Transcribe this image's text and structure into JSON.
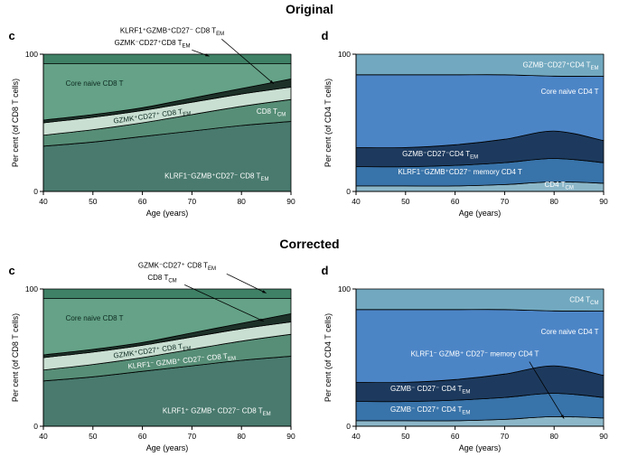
{
  "sections": [
    {
      "title": "Original"
    },
    {
      "title": "Corrected"
    }
  ],
  "chart_data": [
    {
      "panel_letter": "c",
      "section": "Original",
      "type": "area",
      "stacked": true,
      "x": [
        40,
        50,
        60,
        70,
        80,
        90
      ],
      "xlim": [
        40,
        90
      ],
      "ylim": [
        0,
        100
      ],
      "xticks": [
        40,
        50,
        60,
        70,
        80,
        90
      ],
      "yticks": [
        0,
        100
      ],
      "xlabel": "Age (years)",
      "ylabel": "Per cent (of CD8 T cells)",
      "series": [
        {
          "name": "KLRF1⁻GZMB⁺CD27⁻ CD8 T~EM~",
          "color": "#497a6d",
          "values": [
            33,
            36,
            40,
            44,
            48,
            51
          ]
        },
        {
          "name": "CD8 T~CM~",
          "color": "#578e77",
          "values": [
            8,
            9,
            10,
            12,
            14,
            16
          ]
        },
        {
          "name": "GZMK⁺CD27⁺ CD8 T~EM~",
          "color": "#c9dfd2",
          "values": [
            9,
            9,
            9,
            9,
            9,
            9
          ]
        },
        {
          "name": "KLRF1⁺GZMB⁺CD27⁻ CD8 T~EM~",
          "color": "#1d3129",
          "values": [
            2,
            2,
            2,
            3,
            4,
            6
          ]
        },
        {
          "name": "Core naive CD8 T",
          "color": "#65a287",
          "values": [
            41,
            37,
            32,
            25,
            18,
            11
          ]
        },
        {
          "name": "GZMK⁻CD27⁺CD8 T~EM~",
          "color": "#3f8166",
          "values": [
            7,
            7,
            7,
            7,
            7,
            7
          ]
        }
      ],
      "labels": [
        {
          "text": "Core naive CD8 T",
          "x": 44.5,
          "y": 77,
          "anchor": "start",
          "color": "#0e2b22"
        },
        {
          "text": "GZMK⁺CD27⁺ CD8 T~EM~",
          "x": 62,
          "y": 53.5,
          "anchor": "middle",
          "color": "#0e2b22",
          "rotate": -8
        },
        {
          "text": "CD8 T~CM~",
          "x": 86,
          "y": 56.5,
          "anchor": "middle",
          "color": "#ffffff"
        },
        {
          "text": "KLRF1⁻GZMB⁺CD27⁻ CD8 T~EM~",
          "x": 75,
          "y": 9.5,
          "anchor": "middle",
          "color": "#ffffff"
        }
      ],
      "annotations": [
        {
          "text": "KLRF1⁺GZMB⁺CD27⁻ CD8 T~EM~",
          "x": 66,
          "y": 115.5,
          "anchor": "middle",
          "color": "#000000",
          "arrow": [
            76,
            111,
            86.5,
            78.5
          ]
        },
        {
          "text": "GZMK⁻CD27⁺CD8 T~EM~",
          "x": 62,
          "y": 106.5,
          "anchor": "middle",
          "color": "#000000",
          "arrow": [
            70,
            103,
            73.5,
            98.5
          ]
        }
      ]
    },
    {
      "panel_letter": "d",
      "section": "Original",
      "type": "area",
      "stacked": true,
      "x": [
        40,
        50,
        60,
        70,
        80,
        90
      ],
      "xlim": [
        40,
        90
      ],
      "ylim": [
        0,
        100
      ],
      "xticks": [
        40,
        50,
        60,
        70,
        80,
        90
      ],
      "yticks": [
        0,
        100
      ],
      "xlabel": "Age (years)",
      "ylabel": "Per cent (of CD4 T cells)",
      "series": [
        {
          "name": "CD4 T~CM~",
          "color": "#8cb7c9",
          "values": [
            4,
            4,
            4,
            5,
            7,
            6
          ]
        },
        {
          "name": "KLRF1⁻GZMB⁺CD27⁻ memory CD4 T",
          "color": "#3873a9",
          "values": [
            14,
            14,
            15,
            16,
            17,
            15
          ]
        },
        {
          "name": "GZMB⁻CD27⁻CD4 T~EM~",
          "color": "#1d3a5e",
          "values": [
            14,
            14,
            15,
            17,
            20,
            16
          ]
        },
        {
          "name": "Core naive CD4 T",
          "color": "#4c85c6",
          "values": [
            53,
            53,
            51,
            47,
            40,
            47
          ]
        },
        {
          "name": "GZMB⁻CD27⁺CD4 T~EM~",
          "color": "#72a9c0",
          "values": [
            15,
            15,
            15,
            15,
            16,
            16
          ]
        }
      ],
      "labels": [
        {
          "text": "GZMB⁻CD27⁺CD4 T~EM~",
          "x": 89,
          "y": 90.5,
          "anchor": "end",
          "color": "#ffffff"
        },
        {
          "text": "Core naive CD4 T",
          "x": 89,
          "y": 71,
          "anchor": "end",
          "color": "#ffffff"
        },
        {
          "text": "GZMB⁻CD27⁻CD4 T~EM~",
          "x": 57,
          "y": 25.5,
          "anchor": "middle",
          "color": "#ffffff"
        },
        {
          "text": "KLRF1⁻GZMB⁺CD27⁻ memory CD4 T",
          "x": 61,
          "y": 12.5,
          "anchor": "middle",
          "color": "#ffffff"
        },
        {
          "text": "CD4 T~CM~",
          "x": 81,
          "y": 3.2,
          "anchor": "middle",
          "color": "#ffffff"
        }
      ],
      "annotations": []
    },
    {
      "panel_letter": "c",
      "section": "Corrected",
      "type": "area",
      "stacked": true,
      "x": [
        40,
        50,
        60,
        70,
        80,
        90
      ],
      "xlim": [
        40,
        90
      ],
      "ylim": [
        0,
        100
      ],
      "xticks": [
        40,
        50,
        60,
        70,
        80,
        90
      ],
      "yticks": [
        0,
        100
      ],
      "xlabel": "Age (years)",
      "ylabel": "Per cent (of CD8 T cells)",
      "series": [
        {
          "name": "KLRF1⁺ GZMB⁺ CD27⁻ CD8 T~EM~",
          "color": "#497a6d",
          "values": [
            33,
            36,
            40,
            44,
            48,
            51
          ]
        },
        {
          "name": "KLRF1⁻ GZMB⁺ CD27⁻ CD8 T~EM~",
          "color": "#578e77",
          "values": [
            8,
            9,
            10,
            12,
            14,
            16
          ]
        },
        {
          "name": "GZMK⁺CD27⁺ CD8 T~EM~",
          "color": "#c9dfd2",
          "values": [
            9,
            9,
            9,
            9,
            9,
            9
          ]
        },
        {
          "name": "CD8 T~CM~",
          "color": "#1d3129",
          "values": [
            2,
            2,
            2,
            3,
            4,
            6
          ]
        },
        {
          "name": "Core naive CD8 T",
          "color": "#65a287",
          "values": [
            41,
            37,
            32,
            25,
            18,
            11
          ]
        },
        {
          "name": "GZMK⁻CD27⁺ CD8 T~EM~",
          "color": "#3f8166",
          "values": [
            7,
            7,
            7,
            7,
            7,
            7
          ]
        }
      ],
      "labels": [
        {
          "text": "Core naive CD8 T",
          "x": 44.5,
          "y": 77,
          "anchor": "start",
          "color": "#0e2b22"
        },
        {
          "text": "GZMK⁺CD27⁺ CD8 T~EM~",
          "x": 62,
          "y": 53.5,
          "anchor": "middle",
          "color": "#0e2b22",
          "rotate": -8
        },
        {
          "text": "KLRF1⁻ GZMB⁺ CD27⁻ CD8 T~EM~",
          "x": 68,
          "y": 46,
          "anchor": "middle",
          "color": "#ffffff",
          "rotate": -6
        },
        {
          "text": "KLRF1⁺ GZMB⁺ CD27⁻ CD8 T~EM~",
          "x": 75,
          "y": 9.5,
          "anchor": "middle",
          "color": "#ffffff"
        }
      ],
      "annotations": [
        {
          "text": "GZMK⁻CD27⁺ CD8 T~EM~",
          "x": 67,
          "y": 115.5,
          "anchor": "middle",
          "color": "#000000",
          "arrow": [
            77,
            111,
            85,
            97
          ]
        },
        {
          "text": "CD8 T~CM~",
          "x": 64,
          "y": 106.5,
          "anchor": "middle",
          "color": "#000000",
          "arrow": [
            68.5,
            103,
            84.5,
            76.5
          ]
        }
      ]
    },
    {
      "panel_letter": "d",
      "section": "Corrected",
      "type": "area",
      "stacked": true,
      "x": [
        40,
        50,
        60,
        70,
        80,
        90
      ],
      "xlim": [
        40,
        90
      ],
      "ylim": [
        0,
        100
      ],
      "xticks": [
        40,
        50,
        60,
        70,
        80,
        90
      ],
      "yticks": [
        0,
        100
      ],
      "xlabel": "Age (years)",
      "ylabel": "Per cent (of CD4 T cells)",
      "series": [
        {
          "name": "KLRF1⁻ GZMB⁺ CD27⁻ memory CD4 T",
          "color": "#8cb7c9",
          "values": [
            4,
            4,
            4,
            5,
            7,
            6
          ]
        },
        {
          "name": "GZMB⁻ CD27⁺ CD4 T~EM~",
          "color": "#3873a9",
          "values": [
            14,
            14,
            15,
            16,
            17,
            15
          ]
        },
        {
          "name": "GZMB⁻ CD27⁻ CD4 T~EM~",
          "color": "#1d3a5e",
          "values": [
            14,
            14,
            15,
            17,
            20,
            16
          ]
        },
        {
          "name": "Core naive CD4 T",
          "color": "#4c85c6",
          "values": [
            53,
            53,
            51,
            47,
            40,
            47
          ]
        },
        {
          "name": "CD4 T~CM~",
          "color": "#72a9c0",
          "values": [
            15,
            15,
            15,
            15,
            16,
            16
          ]
        }
      ],
      "labels": [
        {
          "text": "CD4 T~CM~",
          "x": 89,
          "y": 90.5,
          "anchor": "end",
          "color": "#ffffff"
        },
        {
          "text": "Core naive CD4 T",
          "x": 89,
          "y": 67,
          "anchor": "end",
          "color": "#ffffff"
        },
        {
          "text": "GZMB⁻ CD27⁻ CD4 T~EM~",
          "x": 55,
          "y": 25.5,
          "anchor": "middle",
          "color": "#ffffff"
        },
        {
          "text": "GZMB⁻ CD27⁺ CD4 T~EM~",
          "x": 55,
          "y": 10.5,
          "anchor": "middle",
          "color": "#ffffff"
        }
      ],
      "annotations": [
        {
          "text": "KLRF1⁻ GZMB⁺ CD27⁻ memory CD4 T",
          "x": 64,
          "y": 51,
          "anchor": "middle",
          "color": "#ffffff",
          "arrow": [
            75,
            47,
            82,
            5.5
          ]
        }
      ]
    }
  ]
}
